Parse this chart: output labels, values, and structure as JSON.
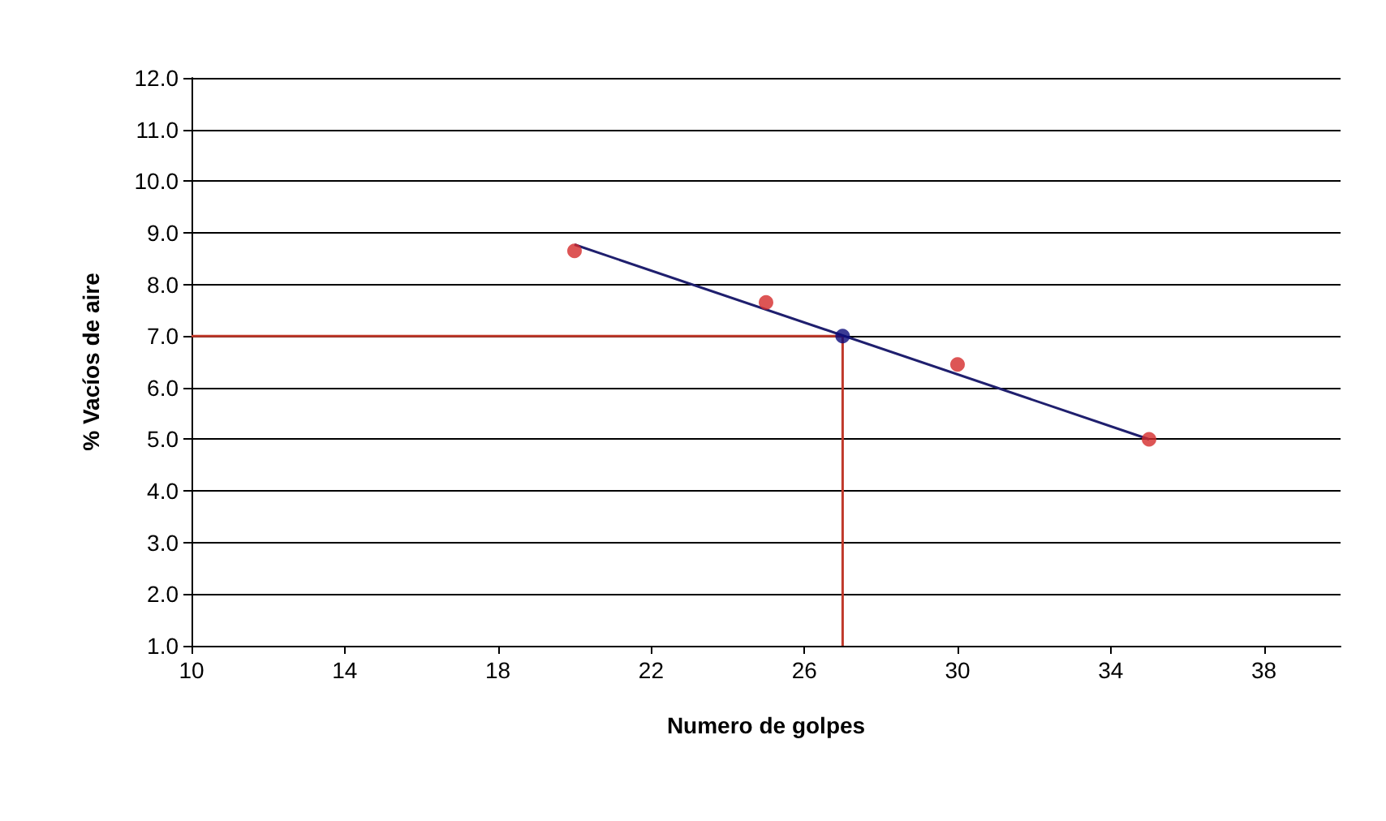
{
  "chart_data": {
    "type": "scatter",
    "xlabel": "Numero de golpes",
    "ylabel": "% Vacíos de aire",
    "xlim": [
      10,
      40
    ],
    "xticks": [
      10,
      14,
      18,
      22,
      26,
      30,
      34,
      38
    ],
    "ylim": [
      1,
      12
    ],
    "yticks": [
      {
        "value": 1,
        "label": "1.0"
      },
      {
        "value": 2,
        "label": "2.0"
      },
      {
        "value": 3,
        "label": "3.0"
      },
      {
        "value": 4,
        "label": "4.0"
      },
      {
        "value": 5,
        "label": "5.0"
      },
      {
        "value": 6,
        "label": "6.0"
      },
      {
        "value": 7,
        "label": "7.0"
      },
      {
        "value": 8,
        "label": "8.0"
      },
      {
        "value": 9,
        "label": "9.0"
      },
      {
        "value": 10,
        "label": "10.0"
      },
      {
        "value": 11,
        "label": "11.0"
      },
      {
        "value": 12,
        "label": "12.0"
      }
    ],
    "grid": "y",
    "series": [
      {
        "type": "line",
        "color": "#c0392b",
        "marker": "none",
        "x": [
          10,
          27,
          27
        ],
        "values": [
          7,
          7,
          1
        ]
      },
      {
        "type": "line",
        "color": "#1f1f6e",
        "marker": "none",
        "x": [
          20,
          35
        ],
        "values": [
          8.77,
          5.0
        ]
      },
      {
        "color": "#d42a2a",
        "marker": "circle",
        "x": [
          20,
          25,
          30,
          35
        ],
        "values": [
          8.65,
          7.65,
          6.45,
          5.0
        ]
      },
      {
        "color": "#0a0a7a",
        "marker": "circle",
        "x": [
          27
        ],
        "values": [
          7.0
        ]
      }
    ]
  }
}
